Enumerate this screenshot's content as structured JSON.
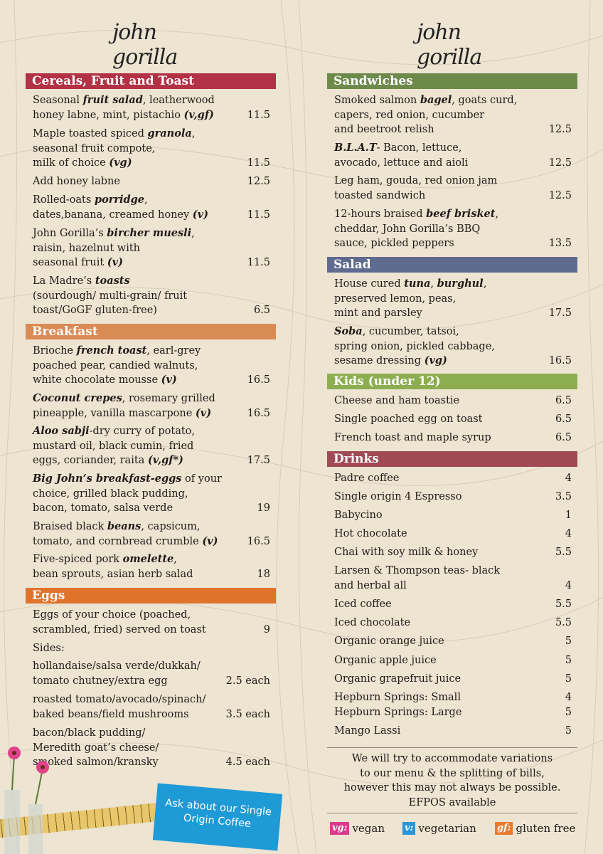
{
  "logo": "john gorilla",
  "colors": {
    "cereals": "#b23144",
    "breakfast": "#d98b56",
    "eggs": "#e0732c",
    "sandwiches": "#6d8a4b",
    "salad": "#5f6b8e",
    "kids": "#8dae50",
    "drinks": "#a04a56",
    "vg": "#d83c8c",
    "v": "#2a95d8",
    "gf": "#e87a30"
  },
  "left": {
    "cereals": {
      "title": "Cereals, Fruit and Toast",
      "items": [
        {
          "html": "Seasonal <b>fruit salad</b>, leatherwood\nhoney labne, mint, pistachio <b>(v,gf)</b>",
          "price": "11.5"
        },
        {
          "html": "Maple toasted spiced <b>granola</b>,\nseasonal fruit compote,\nmilk of choice <b>(vg)</b>",
          "price": "11.5"
        },
        {
          "html": "Add honey labne",
          "price": "12.5"
        },
        {
          "html": "Rolled-oats <b>porridge</b>,\ndates,banana, creamed honey <b>(v)</b>",
          "price": "11.5"
        },
        {
          "html": "John Gorilla’s <b>bircher muesli</b>,\nraisin, hazelnut with\nseasonal fruit <b>(v)</b>",
          "price": "11.5"
        },
        {
          "html": "La Madre’s <b>toasts</b>\n(sourdough/ multi-grain/ fruit\ntoast/GoGF gluten-free)",
          "price": "6.5"
        }
      ]
    },
    "breakfast": {
      "title": "Breakfast",
      "items": [
        {
          "html": "Brioche <b>french toast</b>, earl-grey\npoached pear, candied walnuts,\nwhite chocolate mousse <b>(v)</b>",
          "price": "16.5"
        },
        {
          "html": "<b>Coconut crepes</b>, rosemary grilled\npineapple, vanilla mascarpone <b>(v)</b>",
          "price": "16.5"
        },
        {
          "html": "<b>Aloo sabji</b>-dry curry of potato,\nmustard oil, black cumin, fried\neggs, coriander, raita <b>(v,gf*)</b>",
          "price": "17.5"
        },
        {
          "html": "<b>Big John’s breakfast-eggs</b> of your\nchoice, grilled black pudding,\nbacon, tomato, salsa verde",
          "price": "19"
        },
        {
          "html": "Braised black <b>beans</b>, capsicum,\ntomato, and cornbread crumble <b>(v)</b>",
          "price": "16.5"
        },
        {
          "html": "Five-spiced pork <b>omelette</b>,\nbean sprouts, asian herb salad",
          "price": "18"
        }
      ]
    },
    "eggs": {
      "title": "Eggs",
      "items": [
        {
          "html": "Eggs of your choice (poached,\nscrambled, fried) served on toast",
          "price": "9"
        },
        {
          "html": "Sides:",
          "price": ""
        },
        {
          "html": "hollandaise/salsa verde/dukkah/\ntomato chutney/extra egg",
          "price": "2.5 each"
        },
        {
          "html": "roasted tomato/avocado/spinach/\nbaked beans/field mushrooms",
          "price": "3.5 each"
        },
        {
          "html": "bacon/black pudding/\nMeredith goat’s cheese/\nsmoked salmon/kransky",
          "price": "4.5 each"
        }
      ]
    },
    "promo": "Ask about our Single\nOrigin Coffee"
  },
  "right": {
    "sandwiches": {
      "title": "Sandwiches",
      "items": [
        {
          "html": "Smoked salmon <b>bagel</b>, goats curd,\ncapers, red onion, cucumber\nand beetroot relish",
          "price": "12.5"
        },
        {
          "html": "<b>B.L.A.T</b>- Bacon, lettuce,\navocado, lettuce and aioli",
          "price": "12.5"
        },
        {
          "html": "Leg ham, gouda, red onion jam\ntoasted sandwich",
          "price": "12.5"
        },
        {
          "html": "12-hours braised <b>beef brisket</b>,\ncheddar, John Gorilla’s BBQ\nsauce, pickled peppers",
          "price": "13.5"
        }
      ]
    },
    "salad": {
      "title": "Salad",
      "items": [
        {
          "html": "House cured <b>tuna</b>, <b>burghul</b>,\npreserved lemon, peas,\nmint and parsley",
          "price": "17.5"
        },
        {
          "html": "<b>Soba</b>, cucumber, tatsoi,\nspring onion, pickled cabbage,\nsesame dressing <b>(vg)</b>",
          "price": "16.5"
        }
      ]
    },
    "kids": {
      "title": "Kids (under 12)",
      "items": [
        {
          "html": "Cheese and ham toastie",
          "price": "6.5"
        },
        {
          "html": "Single poached egg on toast",
          "price": "6.5"
        },
        {
          "html": "French toast and maple syrup",
          "price": "6.5"
        }
      ]
    },
    "drinks": {
      "title": "Drinks",
      "items": [
        {
          "html": "Padre coffee",
          "price": "4"
        },
        {
          "html": "Single origin 4 Espresso",
          "price": "3.5"
        },
        {
          "html": "Babycino",
          "price": "1"
        },
        {
          "html": "Hot chocolate",
          "price": "4"
        },
        {
          "html": "Chai with soy milk & honey",
          "price": "5.5"
        },
        {
          "html": "Larsen & Thompson teas- black\nand herbal all",
          "price": "4"
        },
        {
          "html": "Iced coffee",
          "price": "5.5"
        },
        {
          "html": "Iced chocolate",
          "price": "5.5"
        },
        {
          "html": "Organic orange juice",
          "price": "5"
        },
        {
          "html": "Organic apple juice",
          "price": "5"
        },
        {
          "html": "Organic grapefruit juice",
          "price": "5"
        },
        {
          "html": "Hepburn Springs: Small\nHepburn Springs: Large",
          "price": "4\n5"
        },
        {
          "html": "Mango Lassi",
          "price": "5"
        }
      ]
    },
    "note": "We will try to accommodate variations\nto our menu & the splitting of bills,\nhowever this may not always be possible.\nEFPOS available",
    "legend": [
      {
        "tag": "vg:",
        "label": "vegan"
      },
      {
        "tag": "v:",
        "label": "vegetarian"
      },
      {
        "tag": "gf:",
        "label": "gluten free"
      }
    ]
  }
}
